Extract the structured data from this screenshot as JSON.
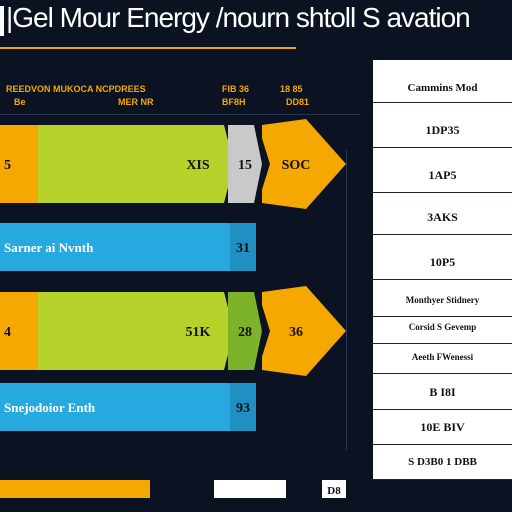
{
  "title": "|Gel Mour Energy /nourn shtoll S avation",
  "headers": {
    "col1_line1": "REEDVON MUKOCA NCPDREES",
    "col1_line2_left": "Be",
    "col1_line2_right": "MER NR",
    "col2_line1": "FIB 36",
    "col2_line2": "BF8H",
    "col3_line1": "18 85",
    "col3_line2": "DD81"
  },
  "chart_data": {
    "type": "bar",
    "title": "|Gel Mour Energy /nourn shtoll S avation",
    "rows": [
      {
        "kind": "arrow",
        "segments": [
          {
            "color": "#f5a800",
            "label": "5"
          },
          {
            "color": "#b8d22c",
            "label": "XIS"
          },
          {
            "color": "#c9c9c9",
            "label": "15"
          },
          {
            "color": "#f5a800",
            "label": "SOC"
          }
        ]
      },
      {
        "kind": "flat",
        "segments": [
          {
            "color": "#27a9e0",
            "label": "Sarner ai Nvnth"
          },
          {
            "color": "#1f8fc4",
            "label": "31"
          }
        ]
      },
      {
        "kind": "arrow",
        "segments": [
          {
            "color": "#f5a800",
            "label": "4"
          },
          {
            "color": "#b8d22c",
            "label": "51K"
          },
          {
            "color": "#7db32b",
            "label": "28"
          },
          {
            "color": "#f5a800",
            "label": "36"
          }
        ]
      },
      {
        "kind": "flat",
        "segments": [
          {
            "color": "#27a9e0",
            "label": "Snejodoior Enth"
          },
          {
            "color": "#1f8fc4",
            "label": "93"
          }
        ]
      }
    ],
    "footer": [
      {
        "color": "#f5a800",
        "label": ""
      },
      {
        "color": "#ffffff",
        "label": ""
      },
      {
        "color": "#ffffff",
        "label": "D8"
      }
    ]
  },
  "panel": {
    "title": "Cammins Mod",
    "rows": [
      "1DP35",
      "1AP5",
      "3AKS",
      "10P5",
      "Monthyer Stidnery",
      "Corsid S Gevemp",
      "Aeeth FWenessi",
      "B I8I",
      "10E BIV",
      "S D3B0 1 DBB"
    ]
  },
  "colors": {
    "background": "#0b1322",
    "accent": "#f5a800",
    "lime": "#b8d22c",
    "blue": "#27a9e0",
    "gray": "#c9c9c9"
  }
}
